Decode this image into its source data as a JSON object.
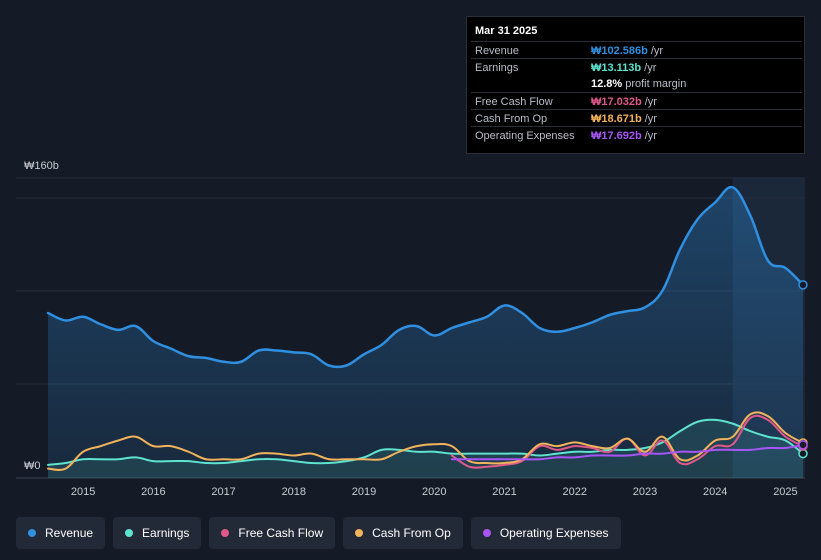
{
  "tooltip": {
    "date": "Mar 31 2025",
    "rows": [
      {
        "label": "Revenue",
        "value": "₩102.586b",
        "unit": "/yr",
        "color": "#2f8fe0"
      },
      {
        "label": "Earnings",
        "value": "₩13.113b",
        "unit": "/yr",
        "color": "#5ee3cf"
      },
      {
        "label": "",
        "value": "12.8%",
        "unit": "profit margin",
        "color": "#ffffff"
      },
      {
        "label": "Free Cash Flow",
        "value": "₩17.032b",
        "unit": "/yr",
        "color": "#e0588a"
      },
      {
        "label": "Cash From Op",
        "value": "₩18.671b",
        "unit": "/yr",
        "color": "#f2b35a"
      },
      {
        "label": "Operating Expenses",
        "value": "₩17.692b",
        "unit": "/yr",
        "color": "#a855f7"
      }
    ]
  },
  "legend": [
    {
      "label": "Revenue",
      "color": "#2f8fe0"
    },
    {
      "label": "Earnings",
      "color": "#5ee3cf"
    },
    {
      "label": "Free Cash Flow",
      "color": "#e0588a"
    },
    {
      "label": "Cash From Op",
      "color": "#f2b35a"
    },
    {
      "label": "Operating Expenses",
      "color": "#a855f7"
    }
  ],
  "chart_data": {
    "type": "area",
    "ylim": [
      0,
      160
    ],
    "y_tick_labels": {
      "top": "₩160b",
      "bottom": "₩0"
    },
    "x_tick_labels": [
      "2015",
      "2016",
      "2017",
      "2018",
      "2019",
      "2020",
      "2021",
      "2022",
      "2023",
      "2024",
      "2025"
    ],
    "xlim": [
      2014.5,
      2025.25
    ],
    "highlight_from": 2024.25,
    "series": [
      {
        "name": "Revenue",
        "color": "#2f8fe0",
        "fill": true,
        "points": [
          [
            2014.5,
            88
          ],
          [
            2014.75,
            84
          ],
          [
            2015.0,
            86
          ],
          [
            2015.25,
            82
          ],
          [
            2015.5,
            79
          ],
          [
            2015.75,
            81
          ],
          [
            2016.0,
            73
          ],
          [
            2016.25,
            69
          ],
          [
            2016.5,
            65
          ],
          [
            2016.75,
            64
          ],
          [
            2017.0,
            62
          ],
          [
            2017.25,
            62
          ],
          [
            2017.5,
            68
          ],
          [
            2017.75,
            68
          ],
          [
            2018.0,
            67
          ],
          [
            2018.25,
            66
          ],
          [
            2018.5,
            60
          ],
          [
            2018.75,
            60
          ],
          [
            2019.0,
            66
          ],
          [
            2019.25,
            71
          ],
          [
            2019.5,
            79
          ],
          [
            2019.75,
            81
          ],
          [
            2020.0,
            76
          ],
          [
            2020.25,
            80
          ],
          [
            2020.5,
            83
          ],
          [
            2020.75,
            86
          ],
          [
            2021.0,
            92
          ],
          [
            2021.25,
            88
          ],
          [
            2021.5,
            80
          ],
          [
            2021.75,
            78
          ],
          [
            2022.0,
            80
          ],
          [
            2022.25,
            83
          ],
          [
            2022.5,
            87
          ],
          [
            2022.75,
            89
          ],
          [
            2023.0,
            91
          ],
          [
            2023.25,
            100
          ],
          [
            2023.5,
            122
          ],
          [
            2023.75,
            138
          ],
          [
            2024.0,
            147
          ],
          [
            2024.25,
            155
          ],
          [
            2024.5,
            140
          ],
          [
            2024.75,
            116
          ],
          [
            2025.0,
            112
          ],
          [
            2025.25,
            103
          ]
        ]
      },
      {
        "name": "Earnings",
        "color": "#5ee3cf",
        "fill": true,
        "points": [
          [
            2014.5,
            7
          ],
          [
            2014.75,
            8
          ],
          [
            2015.0,
            10
          ],
          [
            2015.25,
            10
          ],
          [
            2015.5,
            10
          ],
          [
            2015.75,
            11
          ],
          [
            2016.0,
            9
          ],
          [
            2016.25,
            9
          ],
          [
            2016.5,
            9
          ],
          [
            2016.75,
            8
          ],
          [
            2017.0,
            8
          ],
          [
            2017.25,
            9
          ],
          [
            2017.5,
            10
          ],
          [
            2017.75,
            10
          ],
          [
            2018.0,
            9
          ],
          [
            2018.25,
            8
          ],
          [
            2018.5,
            8
          ],
          [
            2018.75,
            9
          ],
          [
            2019.0,
            11
          ],
          [
            2019.25,
            15
          ],
          [
            2019.5,
            15
          ],
          [
            2019.75,
            14
          ],
          [
            2020.0,
            14
          ],
          [
            2020.25,
            13
          ],
          [
            2020.5,
            13
          ],
          [
            2020.75,
            13
          ],
          [
            2021.0,
            13
          ],
          [
            2021.25,
            13
          ],
          [
            2021.5,
            12
          ],
          [
            2021.75,
            13
          ],
          [
            2022.0,
            14
          ],
          [
            2022.25,
            14
          ],
          [
            2022.5,
            15
          ],
          [
            2022.75,
            15
          ],
          [
            2023.0,
            16
          ],
          [
            2023.25,
            19
          ],
          [
            2023.5,
            25
          ],
          [
            2023.75,
            30
          ],
          [
            2024.0,
            31
          ],
          [
            2024.25,
            29
          ],
          [
            2024.5,
            25
          ],
          [
            2024.75,
            22
          ],
          [
            2025.0,
            20
          ],
          [
            2025.25,
            13
          ]
        ]
      },
      {
        "name": "Free Cash Flow",
        "color": "#e0588a",
        "fill": false,
        "points": [
          [
            2020.25,
            12
          ],
          [
            2020.5,
            6
          ],
          [
            2020.75,
            6
          ],
          [
            2021.0,
            7
          ],
          [
            2021.25,
            9
          ],
          [
            2021.5,
            17
          ],
          [
            2021.75,
            15
          ],
          [
            2022.0,
            17
          ],
          [
            2022.25,
            16
          ],
          [
            2022.5,
            14
          ],
          [
            2022.75,
            21
          ],
          [
            2023.0,
            12
          ],
          [
            2023.25,
            20
          ],
          [
            2023.5,
            8
          ],
          [
            2023.75,
            10
          ],
          [
            2024.0,
            17
          ],
          [
            2024.25,
            18
          ],
          [
            2024.5,
            32
          ],
          [
            2024.75,
            31
          ],
          [
            2025.0,
            22
          ],
          [
            2025.25,
            17
          ]
        ]
      },
      {
        "name": "Cash From Op",
        "color": "#f2b35a",
        "fill": false,
        "points": [
          [
            2014.5,
            5
          ],
          [
            2014.75,
            5
          ],
          [
            2015.0,
            14
          ],
          [
            2015.25,
            17
          ],
          [
            2015.5,
            20
          ],
          [
            2015.75,
            22
          ],
          [
            2016.0,
            17
          ],
          [
            2016.25,
            17
          ],
          [
            2016.5,
            14
          ],
          [
            2016.75,
            10
          ],
          [
            2017.0,
            10
          ],
          [
            2017.25,
            10
          ],
          [
            2017.5,
            13
          ],
          [
            2017.75,
            13
          ],
          [
            2018.0,
            12
          ],
          [
            2018.25,
            13
          ],
          [
            2018.5,
            10
          ],
          [
            2018.75,
            10
          ],
          [
            2019.0,
            10
          ],
          [
            2019.25,
            10
          ],
          [
            2019.5,
            14
          ],
          [
            2019.75,
            17
          ],
          [
            2020.0,
            18
          ],
          [
            2020.25,
            17
          ],
          [
            2020.5,
            9
          ],
          [
            2020.75,
            8
          ],
          [
            2021.0,
            8
          ],
          [
            2021.25,
            10
          ],
          [
            2021.5,
            18
          ],
          [
            2021.75,
            17
          ],
          [
            2022.0,
            19
          ],
          [
            2022.25,
            17
          ],
          [
            2022.5,
            16
          ],
          [
            2022.75,
            21
          ],
          [
            2023.0,
            14
          ],
          [
            2023.25,
            22
          ],
          [
            2023.5,
            10
          ],
          [
            2023.75,
            12
          ],
          [
            2024.0,
            20
          ],
          [
            2024.25,
            22
          ],
          [
            2024.5,
            34
          ],
          [
            2024.75,
            33
          ],
          [
            2025.0,
            24
          ],
          [
            2025.25,
            18.7
          ]
        ]
      },
      {
        "name": "Operating Expenses",
        "color": "#a855f7",
        "fill": false,
        "points": [
          [
            2020.25,
            10
          ],
          [
            2020.5,
            10
          ],
          [
            2020.75,
            10
          ],
          [
            2021.0,
            10
          ],
          [
            2021.25,
            10
          ],
          [
            2021.5,
            10
          ],
          [
            2021.75,
            11
          ],
          [
            2022.0,
            11
          ],
          [
            2022.25,
            12
          ],
          [
            2022.5,
            12
          ],
          [
            2022.75,
            12
          ],
          [
            2023.0,
            13
          ],
          [
            2023.25,
            13
          ],
          [
            2023.5,
            14
          ],
          [
            2023.75,
            14
          ],
          [
            2024.0,
            15
          ],
          [
            2024.25,
            15
          ],
          [
            2024.5,
            15
          ],
          [
            2024.75,
            16
          ],
          [
            2025.0,
            16
          ],
          [
            2025.25,
            17.7
          ]
        ]
      }
    ]
  }
}
